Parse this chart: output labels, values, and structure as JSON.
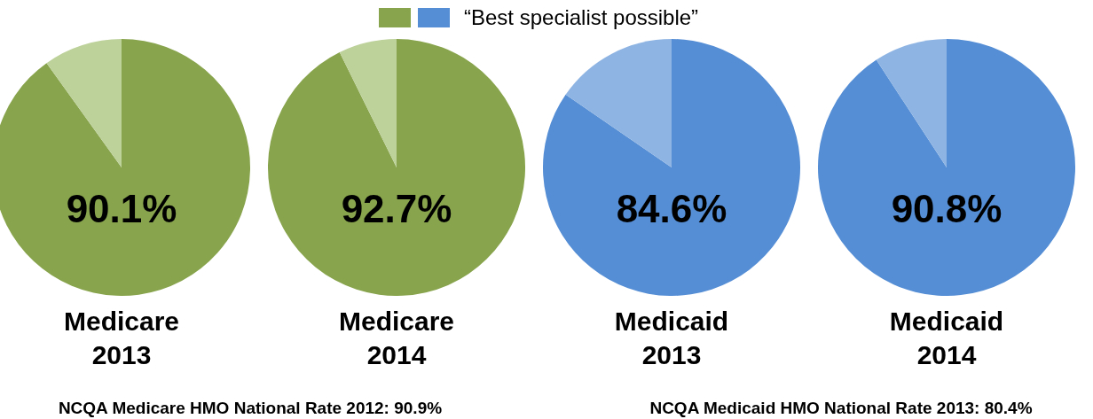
{
  "chart_data": [
    {
      "type": "pie",
      "title": "Medicare 2013",
      "categories": [
        null,
        null
      ],
      "values": [
        90.1,
        9.9
      ],
      "colors": [
        "#88a44c",
        "#bdd19a"
      ],
      "value_labels": [
        "90.1%",
        null
      ],
      "annotations": [
        "NCQA Medicare HMO National Rate 2012: 90.9%"
      ]
    },
    {
      "type": "pie",
      "title": "Medicare 2014",
      "categories": [
        null,
        null
      ],
      "values": [
        92.7,
        7.3
      ],
      "colors": [
        "#88a44c",
        "#bdd19a"
      ],
      "value_labels": [
        "92.7%",
        null
      ]
    },
    {
      "type": "pie",
      "title": "Medicaid 2013",
      "categories": [
        "“Best specialist possible”",
        null
      ],
      "values": [
        84.6,
        15.4
      ],
      "colors": [
        "#558ed5",
        "#8eb4e3"
      ],
      "value_labels": [
        "84.6%",
        null
      ],
      "legend": "top",
      "annotations": [
        "NCQA Medicaid HMO National Rate 2013: 80.4%"
      ]
    },
    {
      "type": "pie",
      "title": "Medicaid 2014",
      "categories": [
        null,
        null
      ],
      "values": [
        90.8,
        9.2
      ],
      "colors": [
        "#558ed5",
        "#8eb4e3"
      ],
      "value_labels": [
        "90.8%",
        null
      ]
    }
  ]
}
